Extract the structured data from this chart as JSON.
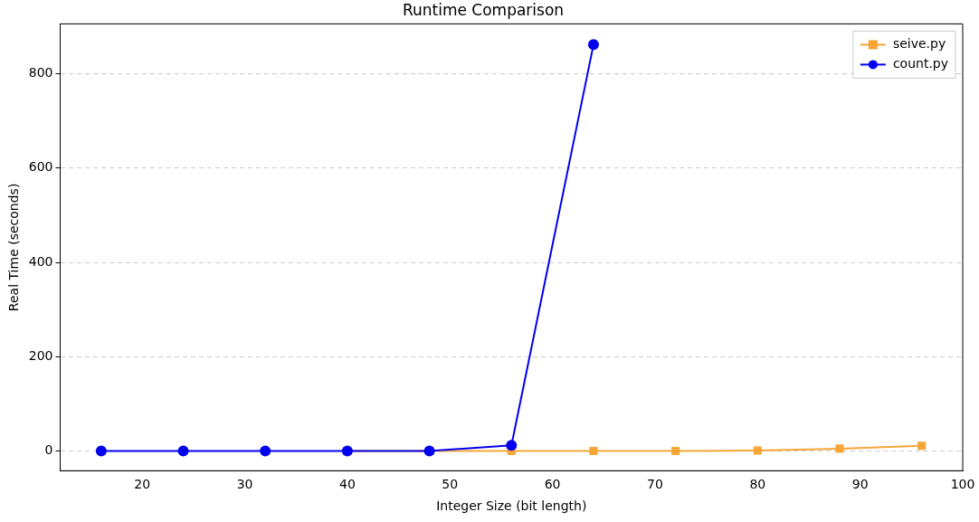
{
  "chart_data": {
    "type": "line",
    "title": "Runtime Comparison",
    "xlabel": "Integer Size (bit length)",
    "ylabel": "Real Time (seconds)",
    "xlim": [
      12,
      100
    ],
    "xticks": [
      20,
      30,
      40,
      50,
      60,
      70,
      80,
      90,
      100
    ],
    "ylim": [
      -42,
      906
    ],
    "yticks": [
      0,
      200,
      400,
      600,
      800
    ],
    "grid": "y",
    "legend": "top right",
    "series": [
      {
        "name": "seive.py",
        "color": "#f5a637",
        "marker": "square",
        "x": [
          40,
          48,
          56,
          64,
          72,
          80,
          88,
          96
        ],
        "values": [
          0,
          0,
          0,
          0,
          0,
          1,
          5,
          11
        ]
      },
      {
        "name": "count.py",
        "color": "#0000ee",
        "marker": "circle",
        "x": [
          16,
          24,
          32,
          40,
          48,
          56,
          64
        ],
        "values": [
          0,
          0,
          0,
          0,
          0,
          12,
          862
        ]
      }
    ]
  }
}
